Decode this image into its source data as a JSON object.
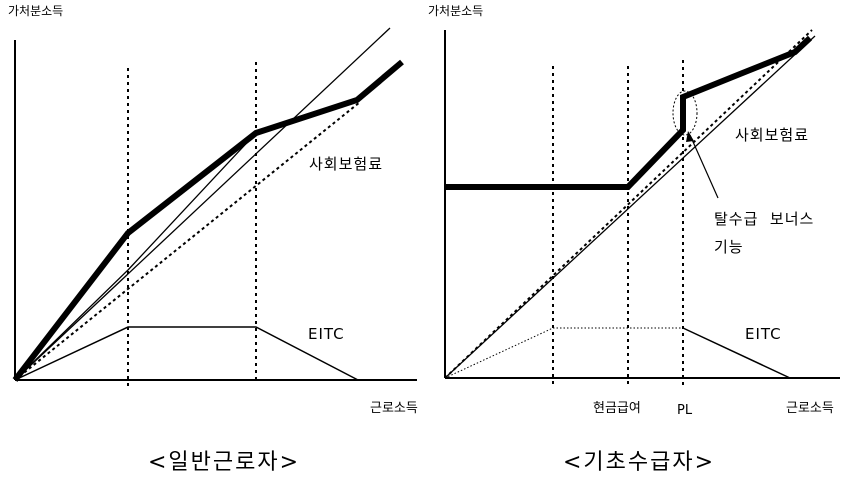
{
  "left": {
    "y_axis_label": "가처분소득",
    "x_axis_label": "근로소득",
    "ss_label": "사회보험료",
    "eitc_label": "EITC",
    "caption": "<일반근로자>"
  },
  "right": {
    "y_axis_label": "가처분소득",
    "x_axis_label": "근로소득",
    "cash_benefit_label": "현금급여",
    "pl_label": "PL",
    "ss_label": "사회보험료",
    "bonus_line1": "탈수급  보너스",
    "bonus_line2": "기능",
    "eitc_label": "EITC",
    "caption": "<기초수급자>"
  }
}
